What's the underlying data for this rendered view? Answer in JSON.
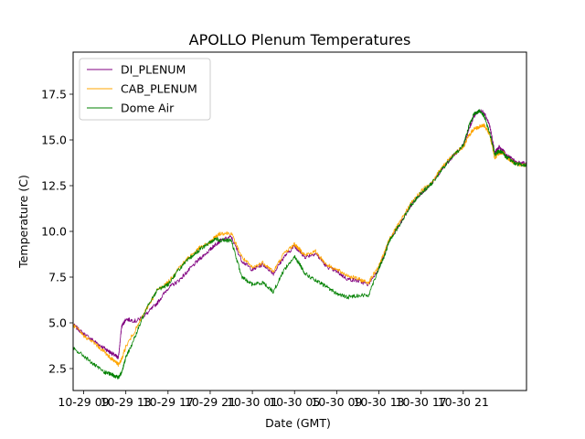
{
  "chart_data": {
    "type": "line",
    "title": "APOLLO Plenum Temperatures",
    "xlabel": "Date (GMT)",
    "ylabel": "Temperature (C)",
    "xlim": [
      0,
      43
    ],
    "ylim": [
      1.3,
      19.8
    ],
    "x_unit": "hours since 10-29 08:00 GMT",
    "x_ticks": [
      {
        "x": 1,
        "label": "10-29 09"
      },
      {
        "x": 5,
        "label": "10-29 13"
      },
      {
        "x": 9,
        "label": "10-29 17"
      },
      {
        "x": 13,
        "label": "10-29 21"
      },
      {
        "x": 17,
        "label": "10-30 01"
      },
      {
        "x": 21,
        "label": "10-30 05"
      },
      {
        "x": 25,
        "label": "10-30 09"
      },
      {
        "x": 29,
        "label": "10-30 13"
      },
      {
        "x": 33,
        "label": "10-30 17"
      },
      {
        "x": 37,
        "label": "10-30 21"
      }
    ],
    "y_ticks": [
      {
        "y": 2.5,
        "label": "2.5"
      },
      {
        "y": 5.0,
        "label": "5.0"
      },
      {
        "y": 7.5,
        "label": "7.5"
      },
      {
        "y": 10.0,
        "label": "10.0"
      },
      {
        "y": 12.5,
        "label": "12.5"
      },
      {
        "y": 15.0,
        "label": "15.0"
      },
      {
        "y": 17.5,
        "label": "17.5"
      }
    ],
    "legend_position": "top-left",
    "series": [
      {
        "name": "DI_PLENUM",
        "color": "#800080",
        "x": [
          0,
          1,
          2,
          3,
          3.5,
          4,
          4.3,
          4.6,
          5,
          6,
          7,
          8,
          9,
          10,
          11,
          12,
          13,
          13.5,
          14,
          15,
          16,
          17,
          18,
          19,
          20,
          21,
          21.5,
          22,
          23,
          24,
          25,
          26,
          27,
          28,
          29,
          29.5,
          30,
          31,
          32,
          33,
          34,
          35,
          36,
          37,
          37.5,
          38,
          38.5,
          39,
          39.5,
          40,
          40.4,
          40.8,
          41,
          41.5,
          42,
          43
        ],
        "y": [
          4.9,
          4.4,
          4.0,
          3.6,
          3.4,
          3.2,
          3.1,
          4.8,
          5.2,
          5.1,
          5.5,
          6.1,
          6.9,
          7.3,
          7.9,
          8.5,
          9.0,
          9.3,
          9.5,
          9.7,
          8.4,
          7.9,
          8.2,
          7.7,
          8.6,
          9.2,
          8.9,
          8.6,
          8.8,
          8.1,
          7.8,
          7.4,
          7.3,
          7.1,
          8.0,
          8.7,
          9.5,
          10.4,
          11.4,
          12.1,
          12.6,
          13.4,
          14.1,
          14.7,
          15.5,
          16.3,
          16.6,
          16.5,
          15.8,
          14.3,
          14.6,
          14.4,
          14.2,
          14.0,
          13.8,
          13.7
        ]
      },
      {
        "name": "CAB_PLENUM",
        "color": "#ffa500",
        "x": [
          0,
          1,
          2,
          3,
          3.5,
          4,
          4.3,
          4.6,
          5,
          6,
          7,
          8,
          9,
          10,
          11,
          12,
          13,
          13.5,
          14,
          15,
          16,
          17,
          18,
          19,
          20,
          21,
          21.5,
          22,
          23,
          24,
          25,
          26,
          27,
          28,
          29,
          29.5,
          30,
          31,
          32,
          33,
          34,
          35,
          36,
          37,
          37.5,
          38,
          38.5,
          39,
          39.5,
          40,
          40.4,
          40.8,
          41,
          41.5,
          42,
          43
        ],
        "y": [
          4.9,
          4.3,
          3.9,
          3.4,
          3.1,
          2.9,
          2.7,
          3.0,
          3.7,
          4.7,
          5.8,
          6.8,
          7.2,
          8.0,
          8.6,
          9.1,
          9.4,
          9.7,
          9.9,
          9.9,
          8.6,
          8.0,
          8.3,
          7.8,
          8.8,
          9.3,
          9.0,
          8.7,
          8.9,
          8.2,
          7.9,
          7.6,
          7.4,
          7.2,
          8.1,
          8.8,
          9.6,
          10.5,
          11.5,
          12.2,
          12.7,
          13.5,
          14.2,
          14.6,
          15.2,
          15.6,
          15.7,
          15.8,
          15.3,
          14.0,
          14.3,
          14.3,
          14.1,
          13.9,
          13.7,
          13.6
        ]
      },
      {
        "name": "Dome Air",
        "color": "#008000",
        "x": [
          0,
          1,
          2,
          3,
          3.5,
          4,
          4.3,
          4.6,
          5,
          6,
          7,
          8,
          9,
          10,
          11,
          12,
          13,
          13.5,
          14,
          15,
          16,
          17,
          18,
          19,
          20,
          21,
          21.5,
          22,
          23,
          24,
          25,
          26,
          27,
          28,
          29,
          29.5,
          30,
          31,
          32,
          33,
          34,
          35,
          36,
          37,
          37.5,
          38,
          38.5,
          39,
          39.5,
          40,
          40.4,
          40.8,
          41,
          41.5,
          42,
          43
        ],
        "y": [
          3.6,
          3.2,
          2.7,
          2.3,
          2.2,
          2.1,
          2.0,
          2.3,
          3.1,
          4.4,
          5.9,
          6.8,
          7.1,
          7.9,
          8.5,
          9.0,
          9.4,
          9.6,
          9.5,
          9.5,
          7.5,
          7.1,
          7.2,
          6.7,
          7.9,
          8.6,
          8.2,
          7.7,
          7.3,
          7.0,
          6.6,
          6.4,
          6.5,
          6.5,
          8.0,
          8.6,
          9.5,
          10.4,
          11.4,
          12.1,
          12.6,
          13.4,
          14.1,
          14.7,
          15.7,
          16.4,
          16.6,
          16.3,
          15.4,
          14.2,
          14.4,
          14.3,
          14.1,
          13.9,
          13.7,
          13.6
        ]
      }
    ]
  }
}
